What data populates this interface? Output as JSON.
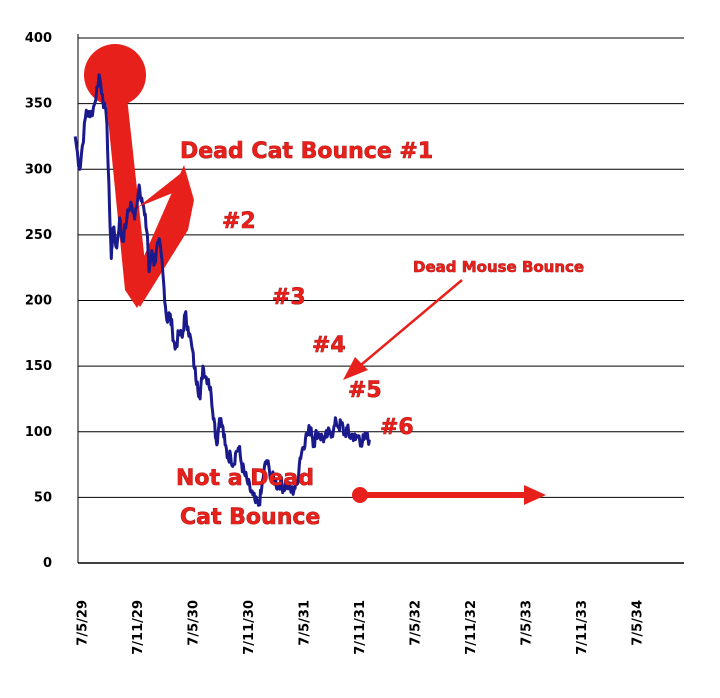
{
  "chart_data": {
    "type": "line",
    "title": "",
    "xlabel": "",
    "ylabel": "",
    "ylim": [
      0,
      400
    ],
    "yticks": [
      0,
      50,
      100,
      150,
      200,
      250,
      300,
      350,
      400
    ],
    "xticks": [
      "7/5/29",
      "7/11/29",
      "7/5/30",
      "7/11/30",
      "7/5/31",
      "7/11/31",
      "7/5/32",
      "7/11/32",
      "7/5/33",
      "7/11/33",
      "7/5/34"
    ],
    "grid": "horizontal",
    "colors": {
      "line": "#1a1a8c",
      "annotation": "#e8201c"
    },
    "series": [
      {
        "name": "",
        "points": [
          [
            -0.05,
            325
          ],
          [
            0.03,
            300
          ],
          [
            0.08,
            318
          ],
          [
            0.15,
            345
          ],
          [
            0.22,
            340
          ],
          [
            0.3,
            350
          ],
          [
            0.38,
            372
          ],
          [
            0.44,
            357
          ],
          [
            0.52,
            335
          ],
          [
            0.57,
            268
          ],
          [
            0.6,
            232
          ],
          [
            0.63,
            255
          ],
          [
            0.7,
            240
          ],
          [
            0.75,
            263
          ],
          [
            0.8,
            245
          ],
          [
            0.88,
            262
          ],
          [
            0.95,
            275
          ],
          [
            1.02,
            262
          ],
          [
            1.1,
            288
          ],
          [
            1.15,
            278
          ],
          [
            1.2,
            265
          ],
          [
            1.25,
            250
          ],
          [
            1.28,
            222
          ],
          [
            1.33,
            238
          ],
          [
            1.38,
            228
          ],
          [
            1.45,
            245
          ],
          [
            1.5,
            235
          ],
          [
            1.55,
            210
          ],
          [
            1.6,
            185
          ],
          [
            1.65,
            190
          ],
          [
            1.7,
            178
          ],
          [
            1.75,
            163
          ],
          [
            1.82,
            175
          ],
          [
            1.88,
            172
          ],
          [
            1.93,
            190
          ],
          [
            1.98,
            180
          ],
          [
            2.05,
            165
          ],
          [
            2.1,
            148
          ],
          [
            2.15,
            138
          ],
          [
            2.2,
            125
          ],
          [
            2.25,
            150
          ],
          [
            2.3,
            142
          ],
          [
            2.35,
            140
          ],
          [
            2.4,
            128
          ],
          [
            2.45,
            110
          ],
          [
            2.5,
            90
          ],
          [
            2.55,
            110
          ],
          [
            2.6,
            105
          ],
          [
            2.65,
            90
          ],
          [
            2.7,
            80
          ],
          [
            2.75,
            82
          ],
          [
            2.8,
            75
          ],
          [
            2.85,
            85
          ],
          [
            2.9,
            88
          ],
          [
            2.95,
            75
          ],
          [
            3.0,
            68
          ],
          [
            3.05,
            62
          ],
          [
            3.1,
            56
          ],
          [
            3.15,
            52
          ],
          [
            3.2,
            46
          ],
          [
            3.25,
            44
          ],
          [
            3.3,
            53
          ],
          [
            3.35,
            70
          ],
          [
            3.4,
            78
          ],
          [
            3.45,
            70
          ],
          [
            3.5,
            65
          ],
          [
            3.55,
            63
          ],
          [
            3.6,
            58
          ],
          [
            3.65,
            62
          ],
          [
            3.7,
            57
          ],
          [
            3.75,
            60
          ],
          [
            3.8,
            58
          ],
          [
            3.85,
            54
          ],
          [
            3.9,
            57
          ],
          [
            3.95,
            60
          ],
          [
            4.0,
            80
          ],
          [
            4.05,
            88
          ],
          [
            4.1,
            95
          ],
          [
            4.15,
            100
          ],
          [
            4.2,
            103
          ],
          [
            4.25,
            90
          ],
          [
            4.3,
            100
          ],
          [
            4.35,
            98
          ],
          [
            4.4,
            95
          ],
          [
            4.45,
            95
          ],
          [
            4.5,
            98
          ],
          [
            4.55,
            100
          ],
          [
            4.6,
            100
          ],
          [
            4.65,
            108
          ],
          [
            4.7,
            104
          ],
          [
            4.75,
            106
          ],
          [
            4.8,
            98
          ],
          [
            4.85,
            102
          ],
          [
            4.9,
            96
          ],
          [
            4.95,
            98
          ],
          [
            5.0,
            94
          ],
          [
            5.05,
            97
          ],
          [
            5.1,
            92
          ],
          [
            5.15,
            94
          ],
          [
            5.2,
            96
          ],
          [
            5.25,
            94
          ]
        ]
      }
    ],
    "annotations": [
      {
        "id": "dcb1",
        "text": "Dead Cat Bounce #1"
      },
      {
        "id": "n2",
        "text": "#2"
      },
      {
        "id": "n3",
        "text": "#3"
      },
      {
        "id": "n4",
        "text": "#4"
      },
      {
        "id": "n5",
        "text": "#5"
      },
      {
        "id": "n6",
        "text": "#6"
      },
      {
        "id": "mouse",
        "text": "Dead Mouse Bounce"
      },
      {
        "id": "notdead1",
        "text": "Not a Dead"
      },
      {
        "id": "notdead2",
        "text": "Cat Bounce"
      }
    ]
  }
}
